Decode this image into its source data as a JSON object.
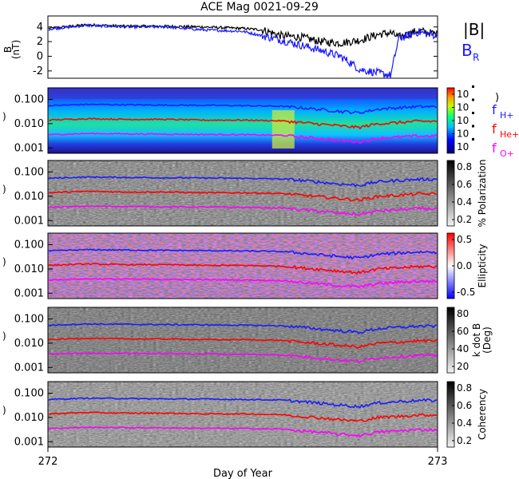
{
  "title": "ACE Mag 0021-09-29",
  "xlabel": "Day of Year",
  "x_ticks": [
    "272",
    "273"
  ],
  "colors": {
    "btotal": "#000000",
    "br": "#1a1aff",
    "f_h": "#1a1aff",
    "f_he": "#ff0000",
    "f_o": "#ff00ff"
  },
  "panels": {
    "mag": {
      "ylabel_line1": "B",
      "ylabel_line2": "(nT)",
      "y_ticks": [
        "4",
        "2",
        "0",
        "-2"
      ],
      "legend_btotal": "|B|",
      "legend_br_main": "B",
      "legend_br_sub": "R"
    },
    "freq_ticks": [
      "0.100",
      "0.010",
      "0.001"
    ],
    "spectrum": {
      "colorbar_ticks": [
        "10",
        "10",
        "10",
        "10",
        "10"
      ],
      "colorbar_extra": ")",
      "legend_h_main": "f",
      "legend_h_sub": "H+",
      "legend_he_main": "f",
      "legend_he_sub": "He+",
      "legend_o_main": "f",
      "legend_o_sub": "O+"
    },
    "polarization": {
      "colorbar_label": "% Polarization",
      "colorbar_ticks": [
        "0.8",
        "0.6",
        "0.4",
        "0.2"
      ]
    },
    "ellipticity": {
      "colorbar_label": "Ellipticity",
      "colorbar_ticks": [
        "0.5",
        "0.0",
        "-0.5"
      ]
    },
    "kdotb": {
      "colorbar_label_line1": "k dot B",
      "colorbar_label_line2": "(Deg)",
      "colorbar_ticks": [
        "80",
        "60",
        "40",
        "20"
      ]
    },
    "coherency": {
      "colorbar_label": "Coherency",
      "colorbar_ticks": [
        "0.8",
        "0.6",
        "0.4",
        "0.2"
      ]
    }
  },
  "chart_data": [
    {
      "type": "line",
      "panel": "mag",
      "x_range": [
        272,
        273
      ],
      "ylim": [
        -3,
        5.5
      ],
      "series": [
        {
          "name": "|B|",
          "x": [
            272.0,
            272.1,
            272.2,
            272.3,
            272.4,
            272.5,
            272.55,
            272.6,
            272.65,
            272.7,
            272.75,
            272.8,
            272.85,
            272.88,
            272.9,
            272.95,
            273.0
          ],
          "y": [
            3.8,
            4.3,
            4.1,
            4.1,
            4.0,
            3.8,
            3.6,
            2.8,
            2.6,
            2.0,
            1.8,
            2.2,
            3.0,
            3.2,
            2.6,
            3.5,
            3.0
          ]
        },
        {
          "name": "BR",
          "x": [
            272.0,
            272.1,
            272.2,
            272.3,
            272.4,
            272.5,
            272.55,
            272.6,
            272.65,
            272.7,
            272.75,
            272.78,
            272.8,
            272.85,
            272.88,
            272.9,
            272.95,
            273.0
          ],
          "y": [
            3.7,
            4.2,
            4.0,
            4.0,
            3.6,
            3.4,
            2.8,
            2.2,
            1.5,
            0.8,
            0.0,
            -1.0,
            -1.8,
            -2.3,
            -2.6,
            2.4,
            3.3,
            2.8
          ]
        }
      ]
    },
    {
      "type": "line",
      "panel": "cyclotron frequencies (all spectral panels)",
      "x_range": [
        272,
        273
      ],
      "ylim": [
        0.0006,
        0.3
      ],
      "y_scale": "log",
      "series": [
        {
          "name": "fH+",
          "x": [
            272.0,
            272.1,
            272.2,
            272.3,
            272.4,
            272.5,
            272.6,
            272.65,
            272.7,
            272.75,
            272.8,
            272.85,
            272.9,
            272.95,
            273.0
          ],
          "y": [
            0.055,
            0.062,
            0.06,
            0.058,
            0.057,
            0.055,
            0.052,
            0.045,
            0.038,
            0.032,
            0.028,
            0.04,
            0.045,
            0.05,
            0.05
          ]
        },
        {
          "name": "fHe+",
          "x": [
            272.0,
            272.1,
            272.2,
            272.3,
            272.4,
            272.5,
            272.6,
            272.65,
            272.7,
            272.75,
            272.8,
            272.85,
            272.9,
            272.95,
            273.0
          ],
          "y": [
            0.014,
            0.016,
            0.015,
            0.015,
            0.014,
            0.014,
            0.013,
            0.011,
            0.0095,
            0.008,
            0.007,
            0.01,
            0.011,
            0.0125,
            0.0125
          ]
        },
        {
          "name": "fO+",
          "x": [
            272.0,
            272.1,
            272.2,
            272.3,
            272.4,
            272.5,
            272.6,
            272.65,
            272.7,
            272.75,
            272.8,
            272.85,
            272.9,
            272.95,
            273.0
          ],
          "y": [
            0.0035,
            0.0039,
            0.0038,
            0.0037,
            0.0036,
            0.0035,
            0.0033,
            0.0028,
            0.0024,
            0.002,
            0.0018,
            0.0025,
            0.0028,
            0.0031,
            0.0031
          ]
        }
      ]
    }
  ]
}
